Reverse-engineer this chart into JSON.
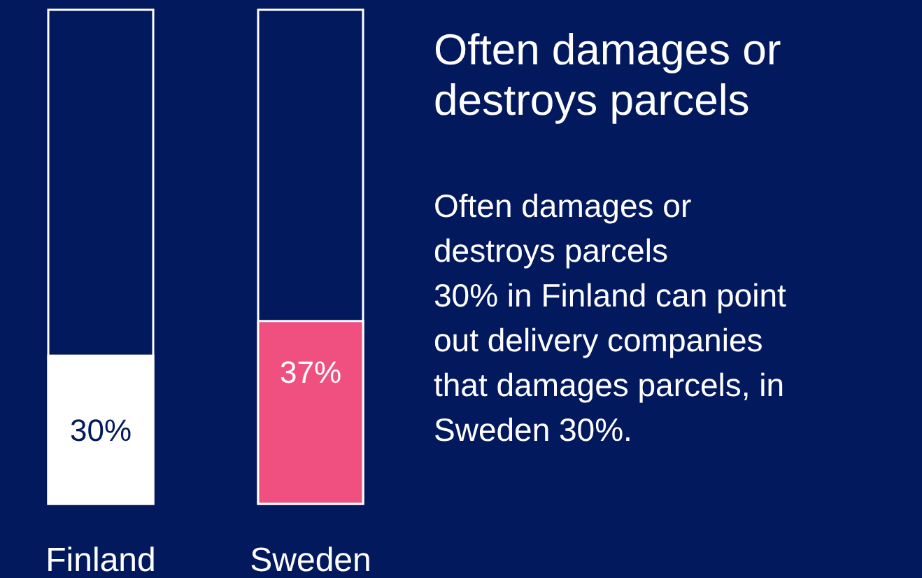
{
  "chart_data": {
    "type": "bar",
    "title": "Often damages or destroys parcels",
    "categories": [
      "Finland",
      "Sweden"
    ],
    "values": [
      30,
      37
    ],
    "colors": [
      "#ffffff",
      "#ef5080"
    ],
    "value_labels": [
      "30%",
      "37%"
    ],
    "annotations": [
      "Often damages or destroys parcels\n30% in Finland can point out delivery companies that damages parcels, in Sweden 30%."
    ]
  }
}
